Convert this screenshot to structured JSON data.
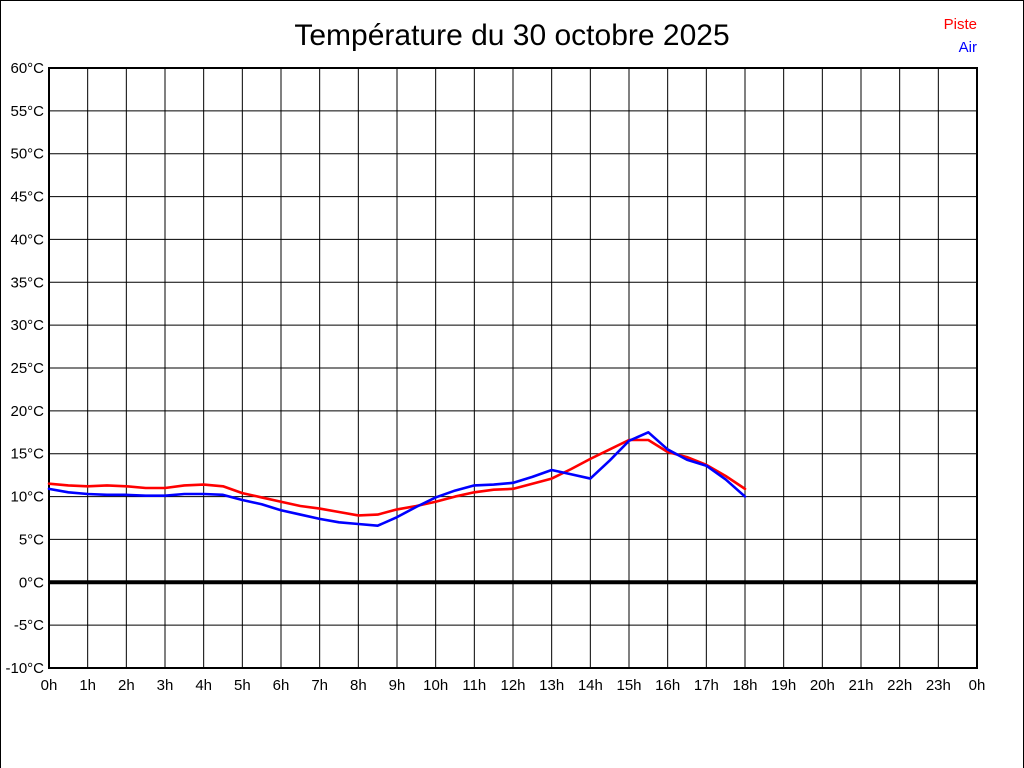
{
  "chart_data": {
    "type": "line",
    "title": "Température du 30 octobre 2025",
    "xlabel": "",
    "ylabel": "",
    "xlim": [
      0,
      24
    ],
    "ylim": [
      -10,
      60
    ],
    "grid": true,
    "grid_color": "#000000",
    "background_color": "#ffffff",
    "zero_line": {
      "value": 0,
      "color": "#000000",
      "width": 4
    },
    "x_tick_values": [
      0,
      1,
      2,
      3,
      4,
      5,
      6,
      7,
      8,
      9,
      10,
      11,
      12,
      13,
      14,
      15,
      16,
      17,
      18,
      19,
      20,
      21,
      22,
      23,
      24
    ],
    "x_tick_labels": [
      "0h",
      "1h",
      "2h",
      "3h",
      "4h",
      "5h",
      "6h",
      "7h",
      "8h",
      "9h",
      "10h",
      "11h",
      "12h",
      "13h",
      "14h",
      "15h",
      "16h",
      "17h",
      "18h",
      "19h",
      "20h",
      "21h",
      "22h",
      "23h",
      "0h"
    ],
    "y_tick_values": [
      60,
      55,
      50,
      45,
      40,
      35,
      30,
      25,
      20,
      15,
      10,
      5,
      0,
      -5,
      -10
    ],
    "y_tick_labels": [
      "60°C",
      "55°C",
      "50°C",
      "45°C",
      "40°C",
      "35°C",
      "30°C",
      "25°C",
      "20°C",
      "15°C",
      "10°C",
      "5°C",
      "0°C",
      "-5°C",
      "-10°C"
    ],
    "legend": {
      "position": "top-right"
    },
    "x": [
      0,
      0.5,
      1,
      1.5,
      2,
      2.5,
      3,
      3.5,
      4,
      4.5,
      5,
      5.5,
      6,
      6.5,
      7,
      7.5,
      8,
      8.5,
      9,
      9.5,
      10,
      10.5,
      11,
      11.5,
      12,
      12.5,
      13,
      13.5,
      14,
      14.5,
      15,
      15.5,
      16,
      16.5,
      17,
      17.5,
      18
    ],
    "series": [
      {
        "name": "Piste",
        "color": "#ff0000",
        "values": [
          11.5,
          11.3,
          11.2,
          11.3,
          11.2,
          11.0,
          11.0,
          11.3,
          11.4,
          11.2,
          10.4,
          9.9,
          9.4,
          8.9,
          8.6,
          8.2,
          7.8,
          7.9,
          8.5,
          8.9,
          9.4,
          10.0,
          10.5,
          10.8,
          10.9,
          11.5,
          12.1,
          13.2,
          14.4,
          15.5,
          16.6,
          16.6,
          15.2,
          14.6,
          13.7,
          12.4,
          10.9
        ]
      },
      {
        "name": "Air",
        "color": "#0000ff",
        "values": [
          10.9,
          10.5,
          10.3,
          10.2,
          10.2,
          10.1,
          10.1,
          10.3,
          10.3,
          10.2,
          9.6,
          9.1,
          8.4,
          7.9,
          7.4,
          7.0,
          6.8,
          6.6,
          7.6,
          8.8,
          9.9,
          10.7,
          11.3,
          11.4,
          11.6,
          12.3,
          13.1,
          12.6,
          12.1,
          14.2,
          16.5,
          17.5,
          15.5,
          14.3,
          13.6,
          12.0,
          10.0
        ]
      }
    ]
  }
}
